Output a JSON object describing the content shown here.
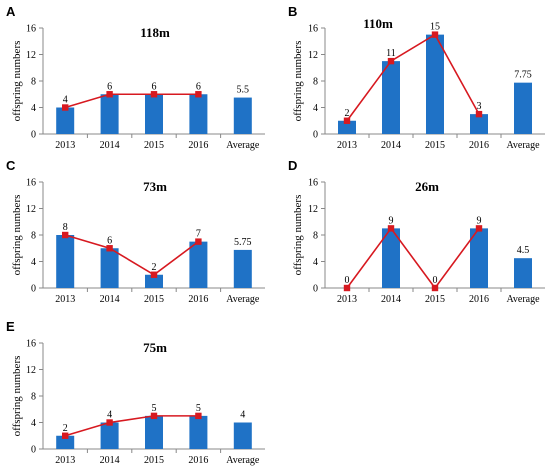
{
  "figure": {
    "bar_color": "#1f72c6",
    "line_color": "#d71920",
    "axis_color": "#888888"
  },
  "chart_data": [
    {
      "panel": "A",
      "type": "bar",
      "title": "118m",
      "ylabel": "offspring numbers",
      "categories": [
        "2013",
        "2014",
        "2015",
        "2016",
        "Average"
      ],
      "values": [
        4,
        6,
        6,
        6,
        5.5
      ],
      "data_labels": [
        "4",
        "6",
        "6",
        "6",
        "5.5"
      ],
      "line_values": [
        4,
        6,
        6,
        6
      ],
      "ylim": [
        0,
        16
      ],
      "yticks": [
        "0",
        "4",
        "8",
        "12",
        "16"
      ],
      "grid": false
    },
    {
      "panel": "B",
      "type": "bar",
      "title": "110m",
      "ylabel": "offspring numbers",
      "categories": [
        "2013",
        "2014",
        "2015",
        "2016",
        "Average"
      ],
      "values": [
        2,
        11,
        15,
        3,
        7.75
      ],
      "data_labels": [
        "2",
        "11",
        "15",
        "3",
        "7.75"
      ],
      "line_values": [
        2,
        11,
        15,
        3
      ],
      "ylim": [
        0,
        16
      ],
      "yticks": [
        "0",
        "4",
        "8",
        "12",
        "16"
      ],
      "grid": false
    },
    {
      "panel": "C",
      "type": "bar",
      "title": "73m",
      "ylabel": "offspring numbers",
      "categories": [
        "2013",
        "2014",
        "2015",
        "2016",
        "Average"
      ],
      "values": [
        8,
        6,
        2,
        7,
        5.75
      ],
      "data_labels": [
        "8",
        "6",
        "2",
        "7",
        "5.75"
      ],
      "line_values": [
        8,
        6,
        2,
        7
      ],
      "ylim": [
        0,
        16
      ],
      "yticks": [
        "0",
        "4",
        "8",
        "12",
        "16"
      ],
      "grid": false
    },
    {
      "panel": "D",
      "type": "bar",
      "title": "26m",
      "ylabel": "offspring numbers",
      "categories": [
        "2013",
        "2014",
        "2015",
        "2016",
        "Average"
      ],
      "values": [
        0,
        9,
        0,
        9,
        4.5
      ],
      "data_labels": [
        "0",
        "9",
        "0",
        "9",
        "4.5"
      ],
      "line_values": [
        0,
        9,
        0,
        9
      ],
      "ylim": [
        0,
        16
      ],
      "yticks": [
        "0",
        "4",
        "8",
        "12",
        "16"
      ],
      "grid": false
    },
    {
      "panel": "E",
      "type": "bar",
      "title": "75m",
      "ylabel": "offspring numbers",
      "categories": [
        "2013",
        "2014",
        "2015",
        "2016",
        "Average"
      ],
      "values": [
        2,
        4,
        5,
        5,
        4
      ],
      "data_labels": [
        "2",
        "4",
        "5",
        "5",
        "4"
      ],
      "line_values": [
        2,
        4,
        5,
        5
      ],
      "ylim": [
        0,
        16
      ],
      "yticks": [
        "0",
        "4",
        "8",
        "12",
        "16"
      ],
      "grid": false
    }
  ]
}
